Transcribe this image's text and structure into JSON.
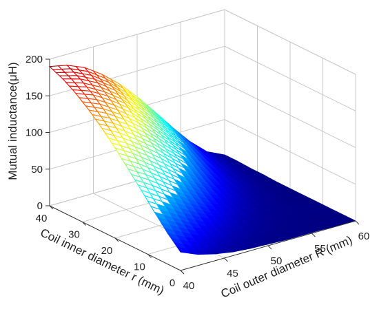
{
  "chart_data": {
    "type": "surface",
    "title": "",
    "zlabel": "Mutual inductance(μH)",
    "xlabel": "Coil outer diameter R (mm)",
    "ylabel": "Coil inner diameter r (mm)",
    "x_ticks": [
      40,
      45,
      50,
      55,
      60
    ],
    "y_ticks": [
      0,
      10,
      20,
      30,
      40
    ],
    "z_ticks": [
      0,
      50,
      100,
      150,
      200
    ],
    "xlim": [
      40,
      60
    ],
    "ylim": [
      0,
      40
    ],
    "zlim": [
      0,
      200
    ],
    "grid": true,
    "colormap": "jet",
    "x": [
      40,
      42,
      44,
      46,
      48,
      50,
      52,
      54,
      56,
      58,
      60
    ],
    "y": [
      0,
      4,
      8,
      12,
      16,
      20,
      24,
      28,
      32,
      36,
      40
    ],
    "z": [
      [
        25,
        15,
        9,
        5,
        3,
        2,
        1,
        1,
        1,
        0,
        0
      ],
      [
        42,
        30,
        19,
        12,
        7,
        4,
        2,
        1,
        1,
        0,
        0
      ],
      [
        62,
        48,
        34,
        22,
        14,
        8,
        4,
        2,
        1,
        1,
        0
      ],
      [
        83,
        68,
        52,
        38,
        25,
        15,
        8,
        4,
        2,
        1,
        0
      ],
      [
        103,
        89,
        72,
        55,
        39,
        25,
        14,
        7,
        3,
        1,
        0
      ],
      [
        123,
        109,
        92,
        74,
        55,
        38,
        23,
        12,
        5,
        2,
        0
      ],
      [
        141,
        128,
        112,
        94,
        73,
        53,
        34,
        19,
        9,
        3,
        0
      ],
      [
        157,
        146,
        131,
        113,
        91,
        69,
        47,
        28,
        13,
        5,
        1
      ],
      [
        171,
        162,
        148,
        131,
        109,
        85,
        61,
        38,
        19,
        7,
        1
      ],
      [
        182,
        175,
        163,
        146,
        125,
        101,
        75,
        49,
        26,
        10,
        2
      ],
      [
        190,
        185,
        175,
        159,
        139,
        115,
        88,
        60,
        34,
        13,
        2
      ]
    ]
  }
}
